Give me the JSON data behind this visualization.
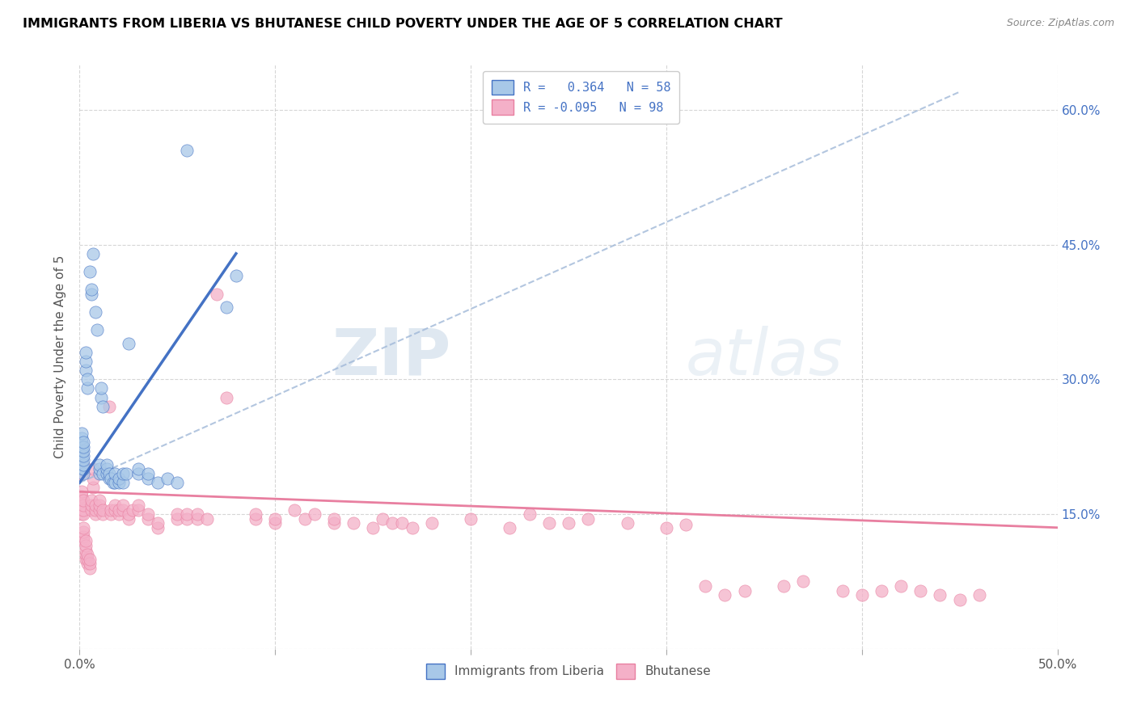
{
  "title": "IMMIGRANTS FROM LIBERIA VS BHUTANESE CHILD POVERTY UNDER THE AGE OF 5 CORRELATION CHART",
  "source": "Source: ZipAtlas.com",
  "ylabel": "Child Poverty Under the Age of 5",
  "xlim": [
    0.0,
    0.5
  ],
  "ylim": [
    0.0,
    0.65
  ],
  "liberia_color": "#a8c8e8",
  "bhutanese_color": "#f4b0c8",
  "liberia_line_color": "#4472C4",
  "bhutanese_line_color": "#E87FA0",
  "dashed_line_color": "#a0b8d8",
  "liberia_scatter": [
    [
      0.001,
      0.2
    ],
    [
      0.001,
      0.21
    ],
    [
      0.001,
      0.215
    ],
    [
      0.001,
      0.22
    ],
    [
      0.001,
      0.225
    ],
    [
      0.001,
      0.23
    ],
    [
      0.001,
      0.235
    ],
    [
      0.001,
      0.24
    ],
    [
      0.002,
      0.195
    ],
    [
      0.002,
      0.2
    ],
    [
      0.002,
      0.205
    ],
    [
      0.002,
      0.21
    ],
    [
      0.002,
      0.215
    ],
    [
      0.002,
      0.22
    ],
    [
      0.002,
      0.225
    ],
    [
      0.002,
      0.23
    ],
    [
      0.003,
      0.31
    ],
    [
      0.003,
      0.32
    ],
    [
      0.003,
      0.33
    ],
    [
      0.004,
      0.29
    ],
    [
      0.004,
      0.3
    ],
    [
      0.005,
      0.42
    ],
    [
      0.006,
      0.395
    ],
    [
      0.006,
      0.4
    ],
    [
      0.007,
      0.44
    ],
    [
      0.008,
      0.375
    ],
    [
      0.009,
      0.355
    ],
    [
      0.01,
      0.195
    ],
    [
      0.01,
      0.2
    ],
    [
      0.01,
      0.205
    ],
    [
      0.011,
      0.28
    ],
    [
      0.011,
      0.29
    ],
    [
      0.012,
      0.27
    ],
    [
      0.012,
      0.195
    ],
    [
      0.014,
      0.195
    ],
    [
      0.014,
      0.2
    ],
    [
      0.014,
      0.205
    ],
    [
      0.015,
      0.19
    ],
    [
      0.015,
      0.195
    ],
    [
      0.016,
      0.19
    ],
    [
      0.017,
      0.185
    ],
    [
      0.018,
      0.185
    ],
    [
      0.018,
      0.195
    ],
    [
      0.02,
      0.185
    ],
    [
      0.02,
      0.19
    ],
    [
      0.022,
      0.185
    ],
    [
      0.022,
      0.195
    ],
    [
      0.024,
      0.195
    ],
    [
      0.025,
      0.34
    ],
    [
      0.03,
      0.195
    ],
    [
      0.03,
      0.2
    ],
    [
      0.035,
      0.19
    ],
    [
      0.035,
      0.195
    ],
    [
      0.04,
      0.185
    ],
    [
      0.045,
      0.19
    ],
    [
      0.05,
      0.185
    ],
    [
      0.055,
      0.555
    ],
    [
      0.075,
      0.38
    ],
    [
      0.08,
      0.415
    ]
  ],
  "bhutanese_scatter": [
    [
      0.001,
      0.195
    ],
    [
      0.001,
      0.2
    ],
    [
      0.001,
      0.205
    ],
    [
      0.001,
      0.21
    ],
    [
      0.001,
      0.215
    ],
    [
      0.001,
      0.22
    ],
    [
      0.001,
      0.15
    ],
    [
      0.001,
      0.155
    ],
    [
      0.001,
      0.16
    ],
    [
      0.001,
      0.165
    ],
    [
      0.001,
      0.17
    ],
    [
      0.001,
      0.175
    ],
    [
      0.002,
      0.15
    ],
    [
      0.002,
      0.155
    ],
    [
      0.002,
      0.16
    ],
    [
      0.002,
      0.165
    ],
    [
      0.002,
      0.12
    ],
    [
      0.002,
      0.125
    ],
    [
      0.002,
      0.13
    ],
    [
      0.002,
      0.135
    ],
    [
      0.003,
      0.1
    ],
    [
      0.003,
      0.105
    ],
    [
      0.003,
      0.11
    ],
    [
      0.003,
      0.115
    ],
    [
      0.003,
      0.12
    ],
    [
      0.004,
      0.095
    ],
    [
      0.004,
      0.1
    ],
    [
      0.004,
      0.105
    ],
    [
      0.005,
      0.09
    ],
    [
      0.005,
      0.095
    ],
    [
      0.005,
      0.1
    ],
    [
      0.006,
      0.155
    ],
    [
      0.006,
      0.16
    ],
    [
      0.006,
      0.165
    ],
    [
      0.007,
      0.18
    ],
    [
      0.007,
      0.19
    ],
    [
      0.007,
      0.2
    ],
    [
      0.008,
      0.15
    ],
    [
      0.008,
      0.155
    ],
    [
      0.008,
      0.16
    ],
    [
      0.01,
      0.155
    ],
    [
      0.01,
      0.16
    ],
    [
      0.01,
      0.165
    ],
    [
      0.012,
      0.15
    ],
    [
      0.012,
      0.155
    ],
    [
      0.015,
      0.27
    ],
    [
      0.016,
      0.15
    ],
    [
      0.016,
      0.155
    ],
    [
      0.018,
      0.155
    ],
    [
      0.018,
      0.16
    ],
    [
      0.02,
      0.15
    ],
    [
      0.02,
      0.155
    ],
    [
      0.022,
      0.155
    ],
    [
      0.022,
      0.16
    ],
    [
      0.025,
      0.145
    ],
    [
      0.025,
      0.15
    ],
    [
      0.027,
      0.155
    ],
    [
      0.03,
      0.155
    ],
    [
      0.03,
      0.16
    ],
    [
      0.035,
      0.145
    ],
    [
      0.035,
      0.15
    ],
    [
      0.04,
      0.135
    ],
    [
      0.04,
      0.14
    ],
    [
      0.05,
      0.145
    ],
    [
      0.05,
      0.15
    ],
    [
      0.055,
      0.145
    ],
    [
      0.055,
      0.15
    ],
    [
      0.06,
      0.145
    ],
    [
      0.06,
      0.15
    ],
    [
      0.065,
      0.145
    ],
    [
      0.07,
      0.395
    ],
    [
      0.075,
      0.28
    ],
    [
      0.09,
      0.145
    ],
    [
      0.09,
      0.15
    ],
    [
      0.1,
      0.14
    ],
    [
      0.1,
      0.145
    ],
    [
      0.11,
      0.155
    ],
    [
      0.115,
      0.145
    ],
    [
      0.12,
      0.15
    ],
    [
      0.13,
      0.14
    ],
    [
      0.13,
      0.145
    ],
    [
      0.14,
      0.14
    ],
    [
      0.15,
      0.135
    ],
    [
      0.155,
      0.145
    ],
    [
      0.16,
      0.14
    ],
    [
      0.165,
      0.14
    ],
    [
      0.17,
      0.135
    ],
    [
      0.18,
      0.14
    ],
    [
      0.2,
      0.145
    ],
    [
      0.22,
      0.135
    ],
    [
      0.23,
      0.15
    ],
    [
      0.24,
      0.14
    ],
    [
      0.25,
      0.14
    ],
    [
      0.26,
      0.145
    ],
    [
      0.28,
      0.14
    ],
    [
      0.3,
      0.135
    ],
    [
      0.31,
      0.138
    ],
    [
      0.32,
      0.07
    ],
    [
      0.33,
      0.06
    ],
    [
      0.34,
      0.065
    ],
    [
      0.36,
      0.07
    ],
    [
      0.37,
      0.075
    ],
    [
      0.39,
      0.065
    ],
    [
      0.4,
      0.06
    ],
    [
      0.41,
      0.065
    ],
    [
      0.42,
      0.07
    ],
    [
      0.43,
      0.065
    ],
    [
      0.44,
      0.06
    ],
    [
      0.45,
      0.055
    ],
    [
      0.46,
      0.06
    ]
  ],
  "liberia_trendline": [
    [
      0.0,
      0.185
    ],
    [
      0.08,
      0.44
    ]
  ],
  "bhutanese_trendline": [
    [
      0.0,
      0.175
    ],
    [
      0.5,
      0.135
    ]
  ],
  "dashed_trendline": [
    [
      0.0,
      0.185
    ],
    [
      0.45,
      0.62
    ]
  ]
}
